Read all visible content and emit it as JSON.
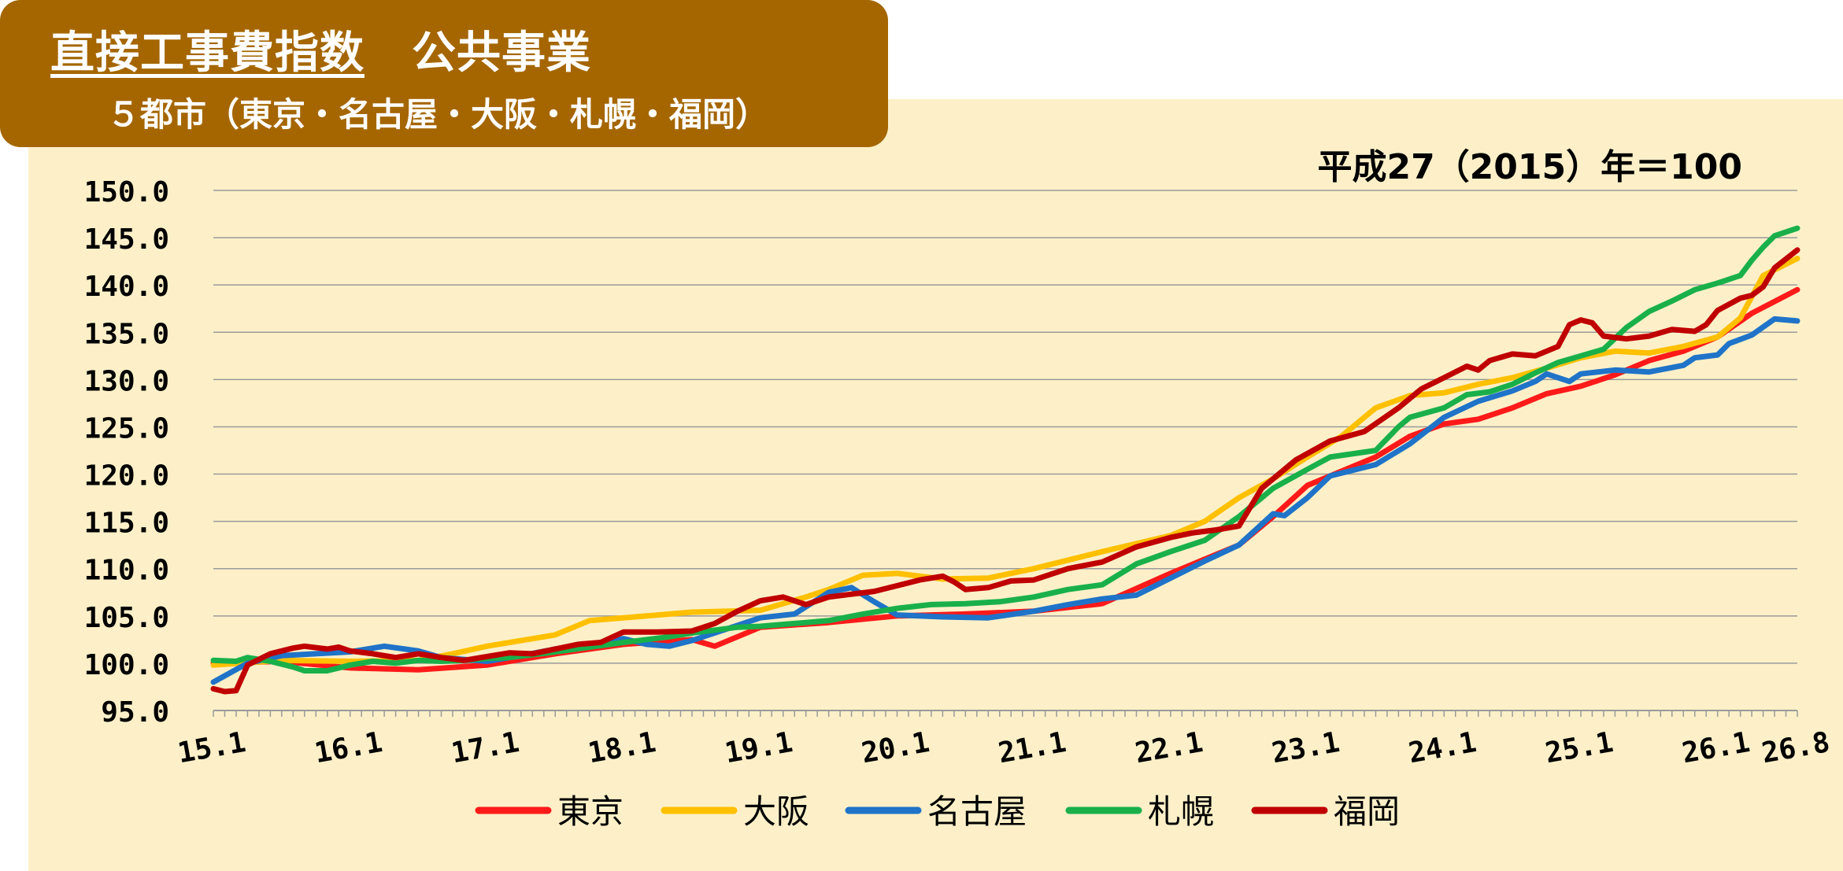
{
  "header": {
    "title": "直接工事費指数",
    "category": "公共事業",
    "subtitle": "５都市（東京・名古屋・大阪・札幌・福岡）",
    "base_note": "平成27（2015）年＝100"
  },
  "colors": {
    "title_bg": "#a56600",
    "panel_bg": "#fdf0c8",
    "東京": "#ff1a1a",
    "大阪": "#ffc000",
    "名古屋": "#1f73c8",
    "札幌": "#19b04a",
    "福岡": "#c00000"
  },
  "chart_data": {
    "type": "line",
    "ylim": [
      95,
      150
    ],
    "yticks": [
      "95.0",
      "100.0",
      "105.0",
      "110.0",
      "115.0",
      "120.0",
      "125.0",
      "130.0",
      "135.0",
      "140.0",
      "145.0",
      "150.0"
    ],
    "xticks": [
      {
        "x": 0,
        "label": "15.1"
      },
      {
        "x": 12,
        "label": "16.1"
      },
      {
        "x": 24,
        "label": "17.1"
      },
      {
        "x": 36,
        "label": "18.1"
      },
      {
        "x": 48,
        "label": "19.1"
      },
      {
        "x": 60,
        "label": "20.1"
      },
      {
        "x": 72,
        "label": "21.1"
      },
      {
        "x": 84,
        "label": "22.1"
      },
      {
        "x": 96,
        "label": "23.1"
      },
      {
        "x": 108,
        "label": "24.1"
      },
      {
        "x": 120,
        "label": "25.1"
      },
      {
        "x": 132,
        "label": "26.1"
      },
      {
        "x": 139,
        "label": "26.8"
      }
    ],
    "grid": true,
    "legend_position": "bottom",
    "series": [
      {
        "name": "東京",
        "color": "#ff1a1a",
        "points": [
          [
            0,
            100
          ],
          [
            6,
            100.2
          ],
          [
            12,
            99.5
          ],
          [
            18,
            99.3
          ],
          [
            24,
            99.8
          ],
          [
            30,
            101
          ],
          [
            36,
            102
          ],
          [
            42,
            102.5
          ],
          [
            44,
            101.8
          ],
          [
            48,
            103.8
          ],
          [
            54,
            104.3
          ],
          [
            60,
            105
          ],
          [
            66,
            105.2
          ],
          [
            72,
            105.5
          ],
          [
            78,
            106.3
          ],
          [
            84,
            109.5
          ],
          [
            90,
            112.5
          ],
          [
            93,
            115.5
          ],
          [
            96,
            118.8
          ],
          [
            99,
            120.3
          ],
          [
            102,
            121.8
          ],
          [
            105,
            124
          ],
          [
            108,
            125.3
          ],
          [
            111,
            125.8
          ],
          [
            114,
            127
          ],
          [
            117,
            128.5
          ],
          [
            120,
            129.3
          ],
          [
            123,
            130.5
          ],
          [
            126,
            132
          ],
          [
            129,
            133
          ],
          [
            132,
            134.5
          ],
          [
            135,
            137
          ],
          [
            139,
            139.5
          ]
        ]
      },
      {
        "name": "大阪",
        "color": "#ffc000",
        "points": [
          [
            0,
            99.8
          ],
          [
            6,
            100.3
          ],
          [
            12,
            100.2
          ],
          [
            18,
            100.3
          ],
          [
            21,
            101
          ],
          [
            24,
            101.8
          ],
          [
            30,
            103
          ],
          [
            33,
            104.5
          ],
          [
            36,
            104.8
          ],
          [
            42,
            105.4
          ],
          [
            48,
            105.6
          ],
          [
            52,
            107
          ],
          [
            54,
            107.8
          ],
          [
            57,
            109.3
          ],
          [
            60,
            109.5
          ],
          [
            64,
            108.9
          ],
          [
            68,
            109
          ],
          [
            72,
            110
          ],
          [
            78,
            111.8
          ],
          [
            84,
            113.5
          ],
          [
            87,
            115
          ],
          [
            90,
            117.5
          ],
          [
            93,
            119.5
          ],
          [
            96,
            121.8
          ],
          [
            99,
            124
          ],
          [
            102,
            127
          ],
          [
            105,
            128.3
          ],
          [
            108,
            128.6
          ],
          [
            111,
            129.5
          ],
          [
            114,
            130.2
          ],
          [
            117,
            131.2
          ],
          [
            120,
            132.3
          ],
          [
            123,
            133
          ],
          [
            126,
            132.8
          ],
          [
            129,
            133.5
          ],
          [
            132,
            134.5
          ],
          [
            134,
            136.5
          ],
          [
            136,
            141
          ],
          [
            139,
            142.8
          ]
        ]
      },
      {
        "name": "名古屋",
        "color": "#1f73c8",
        "points": [
          [
            0,
            98
          ],
          [
            3,
            100
          ],
          [
            6,
            100.8
          ],
          [
            9,
            101
          ],
          [
            12,
            101.2
          ],
          [
            15,
            101.8
          ],
          [
            18,
            101.3
          ],
          [
            20,
            100.6
          ],
          [
            24,
            100.2
          ],
          [
            27,
            100.8
          ],
          [
            30,
            101.5
          ],
          [
            33,
            102
          ],
          [
            36,
            102.6
          ],
          [
            38,
            102
          ],
          [
            40,
            101.8
          ],
          [
            42,
            102.4
          ],
          [
            48,
            104.8
          ],
          [
            51,
            105.2
          ],
          [
            54,
            107.5
          ],
          [
            56,
            108
          ],
          [
            58,
            106.5
          ],
          [
            60,
            105.1
          ],
          [
            64,
            104.9
          ],
          [
            68,
            104.8
          ],
          [
            72,
            105.5
          ],
          [
            75,
            106.2
          ],
          [
            78,
            106.8
          ],
          [
            81,
            107.2
          ],
          [
            84,
            109
          ],
          [
            87,
            110.8
          ],
          [
            90,
            112.5
          ],
          [
            93,
            115.8
          ],
          [
            94,
            115.6
          ],
          [
            96,
            117.5
          ],
          [
            98,
            119.8
          ],
          [
            102,
            121
          ],
          [
            105,
            123.2
          ],
          [
            108,
            126
          ],
          [
            111,
            127.7
          ],
          [
            114,
            128.8
          ],
          [
            116,
            129.8
          ],
          [
            117,
            130.6
          ],
          [
            119,
            129.8
          ],
          [
            120,
            130.6
          ],
          [
            123,
            131
          ],
          [
            126,
            130.8
          ],
          [
            129,
            131.5
          ],
          [
            130,
            132.3
          ],
          [
            132,
            132.6
          ],
          [
            133,
            133.8
          ],
          [
            135,
            134.7
          ],
          [
            137,
            136.4
          ],
          [
            139,
            136.2
          ]
        ]
      },
      {
        "name": "札幌",
        "color": "#19b04a",
        "points": [
          [
            0,
            100.3
          ],
          [
            2,
            100.2
          ],
          [
            3,
            100.6
          ],
          [
            5,
            100.2
          ],
          [
            7,
            99.6
          ],
          [
            8,
            99.2
          ],
          [
            10,
            99.2
          ],
          [
            12,
            99.8
          ],
          [
            14,
            100.2
          ],
          [
            16,
            100
          ],
          [
            18,
            100.3
          ],
          [
            20,
            100.2
          ],
          [
            22,
            100.3
          ],
          [
            24,
            100.5
          ],
          [
            26,
            100.6
          ],
          [
            28,
            100.9
          ],
          [
            30,
            101.2
          ],
          [
            33,
            101.7
          ],
          [
            36,
            102.2
          ],
          [
            40,
            102.8
          ],
          [
            42,
            103.2
          ],
          [
            46,
            103.8
          ],
          [
            48,
            103.9
          ],
          [
            51,
            104.2
          ],
          [
            54,
            104.5
          ],
          [
            57,
            105.2
          ],
          [
            60,
            105.8
          ],
          [
            63,
            106.2
          ],
          [
            66,
            106.3
          ],
          [
            69,
            106.5
          ],
          [
            72,
            107
          ],
          [
            75,
            107.8
          ],
          [
            78,
            108.3
          ],
          [
            81,
            110.5
          ],
          [
            84,
            111.8
          ],
          [
            87,
            113
          ],
          [
            90,
            115.5
          ],
          [
            93,
            118.5
          ],
          [
            96,
            120.5
          ],
          [
            98,
            121.8
          ],
          [
            102,
            122.5
          ],
          [
            104,
            125
          ],
          [
            105,
            126
          ],
          [
            108,
            127
          ],
          [
            110,
            128.4
          ],
          [
            112,
            128.7
          ],
          [
            114,
            129.5
          ],
          [
            116,
            130.7
          ],
          [
            118,
            131.8
          ],
          [
            120,
            132.5
          ],
          [
            122,
            133.2
          ],
          [
            124,
            135.5
          ],
          [
            126,
            137.2
          ],
          [
            128,
            138.3
          ],
          [
            130,
            139.5
          ],
          [
            132,
            140.2
          ],
          [
            134,
            141
          ],
          [
            135,
            142.6
          ],
          [
            136,
            144
          ],
          [
            137,
            145.2
          ],
          [
            139,
            146
          ]
        ]
      },
      {
        "name": "福岡",
        "color": "#c00000",
        "points": [
          [
            0,
            97.3
          ],
          [
            1,
            97
          ],
          [
            2,
            97.1
          ],
          [
            3,
            99.8
          ],
          [
            5,
            101
          ],
          [
            7,
            101.6
          ],
          [
            8,
            101.8
          ],
          [
            10,
            101.5
          ],
          [
            11,
            101.7
          ],
          [
            12,
            101.3
          ],
          [
            14,
            101
          ],
          [
            16,
            100.6
          ],
          [
            18,
            101
          ],
          [
            20,
            100.6
          ],
          [
            22,
            100.3
          ],
          [
            24,
            100.7
          ],
          [
            26,
            101.1
          ],
          [
            28,
            101
          ],
          [
            30,
            101.5
          ],
          [
            32,
            102
          ],
          [
            34,
            102.2
          ],
          [
            36,
            103.3
          ],
          [
            39,
            103.3
          ],
          [
            42,
            103.4
          ],
          [
            44,
            104.2
          ],
          [
            46,
            105.5
          ],
          [
            48,
            106.6
          ],
          [
            50,
            107
          ],
          [
            52,
            106.2
          ],
          [
            54,
            107
          ],
          [
            56,
            107.3
          ],
          [
            58,
            107.6
          ],
          [
            60,
            108.2
          ],
          [
            62,
            108.8
          ],
          [
            64,
            109.2
          ],
          [
            65,
            108.6
          ],
          [
            66,
            107.8
          ],
          [
            68,
            108
          ],
          [
            70,
            108.7
          ],
          [
            72,
            108.8
          ],
          [
            75,
            110
          ],
          [
            78,
            110.7
          ],
          [
            81,
            112.3
          ],
          [
            84,
            113.3
          ],
          [
            86,
            113.8
          ],
          [
            88,
            114.1
          ],
          [
            90,
            114.5
          ],
          [
            92,
            118.5
          ],
          [
            95,
            121.5
          ],
          [
            98,
            123.5
          ],
          [
            101,
            124.5
          ],
          [
            104,
            127
          ],
          [
            106,
            129
          ],
          [
            108,
            130.2
          ],
          [
            110,
            131.4
          ],
          [
            111,
            131
          ],
          [
            112,
            132
          ],
          [
            114,
            132.7
          ],
          [
            116,
            132.5
          ],
          [
            118,
            133.5
          ],
          [
            119,
            135.8
          ],
          [
            120,
            136.3
          ],
          [
            121,
            136
          ],
          [
            122,
            134.6
          ],
          [
            124,
            134.3
          ],
          [
            126,
            134.6
          ],
          [
            128,
            135.3
          ],
          [
            130,
            135.1
          ],
          [
            131,
            135.8
          ],
          [
            132,
            137.3
          ],
          [
            134,
            138.6
          ],
          [
            135,
            138.9
          ],
          [
            136,
            139.8
          ],
          [
            137,
            141.8
          ],
          [
            139,
            143.7
          ]
        ]
      }
    ]
  }
}
